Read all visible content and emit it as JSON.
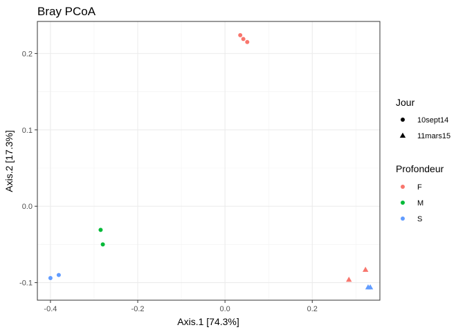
{
  "chart_data": {
    "type": "scatter",
    "title": "Bray PCoA",
    "xlabel": "Axis.1   [74.3%]",
    "ylabel": "Axis.2   [17.3%]",
    "xlim": [
      -0.43,
      0.355
    ],
    "ylim": [
      -0.123,
      0.242
    ],
    "x_ticks": [
      -0.4,
      -0.2,
      0.0,
      0.2
    ],
    "x_tick_labels": [
      "-0.4",
      "-0.2",
      "0.0",
      "0.2"
    ],
    "y_ticks": [
      -0.1,
      0.0,
      0.1,
      0.2
    ],
    "y_tick_labels": [
      "-0.1",
      "0.0",
      "0.1",
      "0.2"
    ],
    "grid": true,
    "legend_position": "right",
    "shape_legend": {
      "title": "Jour",
      "entries": [
        {
          "label": "10sept14",
          "shape": "circle"
        },
        {
          "label": "11mars15",
          "shape": "triangle"
        }
      ]
    },
    "color_legend": {
      "title": "Profondeur",
      "entries": [
        {
          "label": "F",
          "color": "#F8766D"
        },
        {
          "label": "M",
          "color": "#00BA38"
        },
        {
          "label": "S",
          "color": "#619CFF"
        }
      ]
    },
    "points": [
      {
        "x": 0.035,
        "y": 0.224,
        "jour": "10sept14",
        "profondeur": "F"
      },
      {
        "x": 0.042,
        "y": 0.219,
        "jour": "10sept14",
        "profondeur": "F"
      },
      {
        "x": 0.051,
        "y": 0.215,
        "jour": "10sept14",
        "profondeur": "F"
      },
      {
        "x": -0.285,
        "y": -0.031,
        "jour": "10sept14",
        "profondeur": "M"
      },
      {
        "x": -0.28,
        "y": -0.05,
        "jour": "10sept14",
        "profondeur": "M"
      },
      {
        "x": -0.4,
        "y": -0.094,
        "jour": "10sept14",
        "profondeur": "S"
      },
      {
        "x": -0.381,
        "y": -0.09,
        "jour": "10sept14",
        "profondeur": "S"
      },
      {
        "x": 0.284,
        "y": -0.096,
        "jour": "11mars15",
        "profondeur": "F"
      },
      {
        "x": 0.322,
        "y": -0.083,
        "jour": "11mars15",
        "profondeur": "F"
      },
      {
        "x": 0.328,
        "y": -0.106,
        "jour": "11mars15",
        "profondeur": "S"
      },
      {
        "x": 0.333,
        "y": -0.106,
        "jour": "11mars15",
        "profondeur": "S"
      }
    ]
  }
}
